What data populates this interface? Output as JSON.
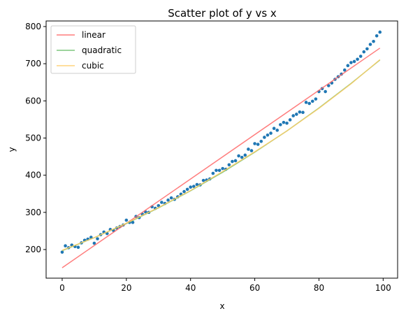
{
  "chart_data": {
    "type": "scatter",
    "title": "Scatter plot of y vs x",
    "xlabel": "x",
    "ylabel": "y",
    "xlim": [
      -5,
      104.5
    ],
    "ylim": [
      123,
      815
    ],
    "xticks": [
      0,
      20,
      40,
      60,
      80,
      100
    ],
    "yticks": [
      200,
      300,
      400,
      500,
      600,
      700,
      800
    ],
    "grid": false,
    "legend_position": "top-left",
    "points": {
      "color": "#1f77b4",
      "x": [
        0,
        1,
        2,
        3,
        4,
        5,
        6,
        7,
        8,
        9,
        10,
        11,
        12,
        13,
        14,
        15,
        16,
        17,
        18,
        19,
        20,
        21,
        22,
        23,
        24,
        25,
        26,
        27,
        28,
        29,
        30,
        31,
        32,
        33,
        34,
        35,
        36,
        37,
        38,
        39,
        40,
        41,
        42,
        43,
        44,
        45,
        46,
        47,
        48,
        49,
        50,
        51,
        52,
        53,
        54,
        55,
        56,
        57,
        58,
        59,
        60,
        61,
        62,
        63,
        64,
        65,
        66,
        67,
        68,
        69,
        70,
        71,
        72,
        73,
        74,
        75,
        76,
        77,
        78,
        79,
        80,
        81,
        82,
        83,
        84,
        85,
        86,
        87,
        88,
        89,
        90,
        91,
        92,
        93,
        94,
        95,
        96,
        97,
        98,
        99
      ],
      "y": [
        193,
        210,
        205,
        212,
        208,
        206,
        218,
        225,
        228,
        233,
        217,
        229,
        240,
        247,
        243,
        254,
        251,
        258,
        262,
        266,
        279,
        273,
        273,
        289,
        286,
        295,
        301,
        300,
        315,
        311,
        318,
        327,
        324,
        333,
        339,
        335,
        342,
        349,
        356,
        362,
        368,
        370,
        375,
        374,
        386,
        387,
        390,
        405,
        413,
        413,
        418,
        416,
        428,
        437,
        439,
        452,
        448,
        454,
        470,
        466,
        485,
        483,
        491,
        502,
        508,
        513,
        526,
        521,
        536,
        542,
        540,
        549,
        560,
        564,
        570,
        569,
        596,
        593,
        599,
        605,
        625,
        633,
        625,
        641,
        648,
        658,
        665,
        672,
        683,
        695,
        703,
        706,
        712,
        720,
        732,
        740,
        752,
        760,
        775,
        785
      ]
    },
    "series": [
      {
        "name": "linear",
        "color": "#ff6666",
        "x": [
          0,
          99
        ],
        "y": [
          151,
          742
        ]
      },
      {
        "name": "quadratic",
        "color": "#66bb66",
        "x": [
          0,
          10,
          20,
          30,
          40,
          50,
          60,
          70,
          80,
          90,
          99
        ],
        "y": [
          197,
          232,
          270,
          312,
          358,
          408,
          462,
          519,
          581,
          647,
          710
        ]
      },
      {
        "name": "cubic",
        "color": "#ffcc66",
        "x": [
          0,
          10,
          20,
          30,
          40,
          50,
          60,
          70,
          80,
          90,
          99
        ],
        "y": [
          198,
          232,
          271,
          313,
          359,
          410,
          463,
          519,
          580,
          646,
          711
        ]
      }
    ]
  }
}
